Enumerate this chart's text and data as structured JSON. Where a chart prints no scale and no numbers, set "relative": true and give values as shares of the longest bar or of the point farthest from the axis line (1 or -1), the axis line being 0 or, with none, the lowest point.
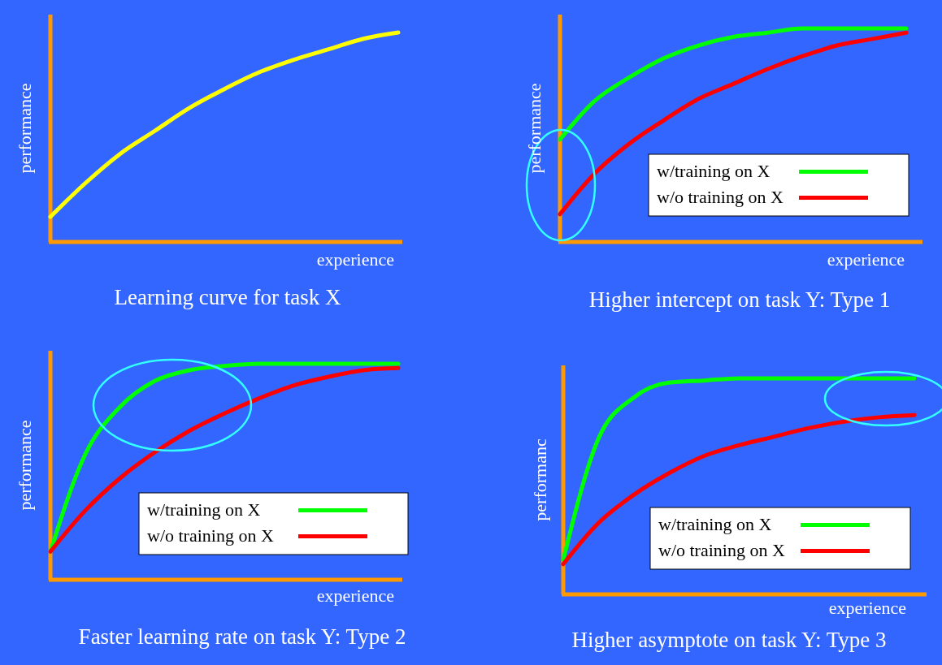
{
  "chart_data": [
    {
      "type": "line",
      "title": "Learning curve for task X",
      "xlabel": "experience",
      "ylabel": "performance",
      "relative": true,
      "legend": false,
      "categories": [
        null,
        null,
        null,
        null,
        null,
        null,
        null,
        null,
        null,
        null,
        null
      ],
      "series": [
        {
          "color": "#ffff00",
          "values": [
            0.12,
            0.28,
            0.42,
            0.53,
            0.64,
            0.73,
            0.81,
            0.87,
            0.92,
            0.97,
            1
          ]
        }
      ]
    },
    {
      "type": "line",
      "title": "Higher intercept on task Y: Type 1",
      "xlabel": "experience",
      "ylabel": "performance",
      "relative": true,
      "legend": "bottom",
      "categories": [
        null,
        null,
        null,
        null,
        null,
        null,
        null,
        null,
        null,
        null,
        null
      ],
      "series": [
        {
          "name": "w/training on X",
          "color": "#00ff00",
          "values": [
            0.48,
            0.66,
            0.77,
            0.86,
            0.92,
            0.96,
            0.98,
            1,
            1,
            1,
            1
          ]
        },
        {
          "name": "w/o training on X",
          "color": "#ff0000",
          "values": [
            0.13,
            0.32,
            0.46,
            0.57,
            0.67,
            0.74,
            0.81,
            0.87,
            0.92,
            0.95,
            0.98
          ]
        }
      ]
    },
    {
      "type": "line",
      "title": "Faster learning rate on task Y: Type 2",
      "xlabel": "experience",
      "ylabel": "performance",
      "relative": true,
      "legend": "bottom right",
      "categories": [
        null,
        null,
        null,
        null,
        null,
        null,
        null,
        null,
        null,
        null,
        null
      ],
      "series": [
        {
          "name": "w/training on X",
          "color": "#00ff00",
          "values": [
            0.13,
            0.58,
            0.8,
            0.92,
            0.97,
            0.99,
            1,
            1,
            1,
            1,
            1
          ]
        },
        {
          "name": "w/o training on X",
          "color": "#ff0000",
          "values": [
            0.13,
            0.32,
            0.47,
            0.59,
            0.69,
            0.77,
            0.84,
            0.9,
            0.94,
            0.97,
            0.98
          ]
        }
      ]
    },
    {
      "type": "line",
      "title": "Higher asymptote on task Y: Type 3",
      "xlabel": "experience",
      "ylabel": "performanc",
      "relative": true,
      "legend": "bottom",
      "categories": [
        null,
        null,
        null,
        null,
        null,
        null,
        null,
        null,
        null,
        null,
        null
      ],
      "series": [
        {
          "name": "w/training on X",
          "color": "#00ff00",
          "values": [
            0.16,
            0.72,
            0.91,
            0.98,
            0.99,
            1,
            1,
            1,
            1,
            1,
            1
          ]
        },
        {
          "name": "w/o training on X",
          "color": "#ff0000",
          "values": [
            0.14,
            0.33,
            0.46,
            0.56,
            0.64,
            0.69,
            0.73,
            0.77,
            0.8,
            0.82,
            0.83
          ]
        }
      ]
    }
  ]
}
